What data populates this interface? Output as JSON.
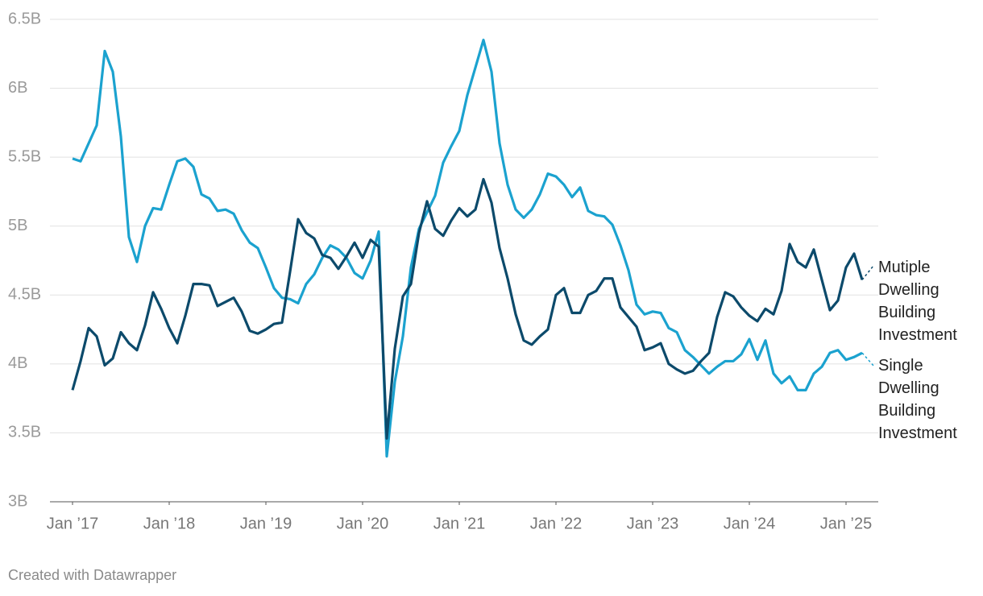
{
  "chart_data": {
    "type": "line",
    "credit": "Created with Datawrapper",
    "x": [
      "2017-01",
      "2017-02",
      "2017-03",
      "2017-04",
      "2017-05",
      "2017-06",
      "2017-07",
      "2017-08",
      "2017-09",
      "2017-10",
      "2017-11",
      "2017-12",
      "2018-01",
      "2018-02",
      "2018-03",
      "2018-04",
      "2018-05",
      "2018-06",
      "2018-07",
      "2018-08",
      "2018-09",
      "2018-10",
      "2018-11",
      "2018-12",
      "2019-01",
      "2019-02",
      "2019-03",
      "2019-04",
      "2019-05",
      "2019-06",
      "2019-07",
      "2019-08",
      "2019-09",
      "2019-10",
      "2019-11",
      "2019-12",
      "2020-01",
      "2020-02",
      "2020-03",
      "2020-04",
      "2020-05",
      "2020-06",
      "2020-07",
      "2020-08",
      "2020-09",
      "2020-10",
      "2020-11",
      "2020-12",
      "2021-01",
      "2021-02",
      "2021-03",
      "2021-04",
      "2021-05",
      "2021-06",
      "2021-07",
      "2021-08",
      "2021-09",
      "2021-10",
      "2021-11",
      "2021-12",
      "2022-01",
      "2022-02",
      "2022-03",
      "2022-04",
      "2022-05",
      "2022-06",
      "2022-07",
      "2022-08",
      "2022-09",
      "2022-10",
      "2022-11",
      "2022-12",
      "2023-01",
      "2023-02",
      "2023-03",
      "2023-04",
      "2023-05",
      "2023-06",
      "2023-07",
      "2023-08",
      "2023-09",
      "2023-10",
      "2023-11",
      "2023-12",
      "2024-01",
      "2024-02",
      "2024-03",
      "2024-04",
      "2024-05",
      "2024-06",
      "2024-07",
      "2024-08",
      "2024-09",
      "2024-10",
      "2024-11",
      "2024-12",
      "2025-01",
      "2025-02",
      "2025-03"
    ],
    "series": [
      {
        "name": "Mutiple Dwelling Building Investment",
        "color": "#0c4a6b",
        "values": [
          3.81,
          4.02,
          4.26,
          4.2,
          3.99,
          4.04,
          4.23,
          4.15,
          4.1,
          4.28,
          4.52,
          4.4,
          4.26,
          4.15,
          4.35,
          4.58,
          4.58,
          4.57,
          4.42,
          4.45,
          4.48,
          4.38,
          4.24,
          4.22,
          4.25,
          4.29,
          4.3,
          4.67,
          5.05,
          4.95,
          4.91,
          4.79,
          4.77,
          4.69,
          4.78,
          4.88,
          4.77,
          4.9,
          4.85,
          3.46,
          4.11,
          4.49,
          4.58,
          4.95,
          5.18,
          4.98,
          4.93,
          5.04,
          5.13,
          5.07,
          5.12,
          5.34,
          5.17,
          4.84,
          4.62,
          4.36,
          4.17,
          4.14,
          4.2,
          4.25,
          4.5,
          4.55,
          4.37,
          4.37,
          4.5,
          4.53,
          4.62,
          4.62,
          4.41,
          4.34,
          4.27,
          4.1,
          4.12,
          4.15,
          4.0,
          3.96,
          3.93,
          3.95,
          4.02,
          4.08,
          4.34,
          4.52,
          4.49,
          4.41,
          4.35,
          4.31,
          4.4,
          4.36,
          4.53,
          4.87,
          4.74,
          4.7,
          4.83,
          4.61,
          4.39,
          4.46,
          4.7,
          4.8,
          4.61
        ]
      },
      {
        "name": "Single Dwelling Building Investment",
        "color": "#1ba2cf",
        "values": [
          5.49,
          5.47,
          5.6,
          5.73,
          6.27,
          6.12,
          5.65,
          4.92,
          4.74,
          5.0,
          5.13,
          5.12,
          5.3,
          5.47,
          5.49,
          5.43,
          5.23,
          5.2,
          5.11,
          5.12,
          5.09,
          4.97,
          4.88,
          4.84,
          4.7,
          4.55,
          4.48,
          4.47,
          4.44,
          4.58,
          4.65,
          4.77,
          4.86,
          4.83,
          4.77,
          4.66,
          4.62,
          4.75,
          4.96,
          3.33,
          3.87,
          4.2,
          4.7,
          4.98,
          5.1,
          5.22,
          5.46,
          5.58,
          5.69,
          5.95,
          6.15,
          6.35,
          6.12,
          5.6,
          5.3,
          5.12,
          5.06,
          5.12,
          5.23,
          5.38,
          5.36,
          5.3,
          5.21,
          5.28,
          5.11,
          5.08,
          5.07,
          5.01,
          4.86,
          4.68,
          4.43,
          4.36,
          4.38,
          4.37,
          4.26,
          4.23,
          4.1,
          4.05,
          3.99,
          3.93,
          3.98,
          4.02,
          4.02,
          4.07,
          4.18,
          4.03,
          4.17,
          3.93,
          3.86,
          3.91,
          3.81,
          3.81,
          3.93,
          3.98,
          4.08,
          4.1,
          4.03,
          4.05,
          4.08
        ]
      }
    ],
    "ylim": [
      3,
      6.5
    ],
    "yticks": [
      {
        "value": 3,
        "label": "3B"
      },
      {
        "value": 3.5,
        "label": "3.5B"
      },
      {
        "value": 4,
        "label": "4B"
      },
      {
        "value": 4.5,
        "label": "4.5B"
      },
      {
        "value": 5,
        "label": "5B"
      },
      {
        "value": 5.5,
        "label": "5.5B"
      },
      {
        "value": 6,
        "label": "6B"
      },
      {
        "value": 6.5,
        "label": "6.5B"
      }
    ],
    "xticks": [
      {
        "value": "2017-01",
        "label": "Jan ’17"
      },
      {
        "value": "2018-01",
        "label": "Jan ’18"
      },
      {
        "value": "2019-01",
        "label": "Jan ’19"
      },
      {
        "value": "2020-01",
        "label": "Jan ’20"
      },
      {
        "value": "2021-01",
        "label": "Jan ’21"
      },
      {
        "value": "2022-01",
        "label": "Jan ’22"
      },
      {
        "value": "2023-01",
        "label": "Jan ’23"
      },
      {
        "value": "2024-01",
        "label": "Jan ’24"
      },
      {
        "value": "2025-01",
        "label": "Jan ’25"
      }
    ],
    "grid": true
  }
}
